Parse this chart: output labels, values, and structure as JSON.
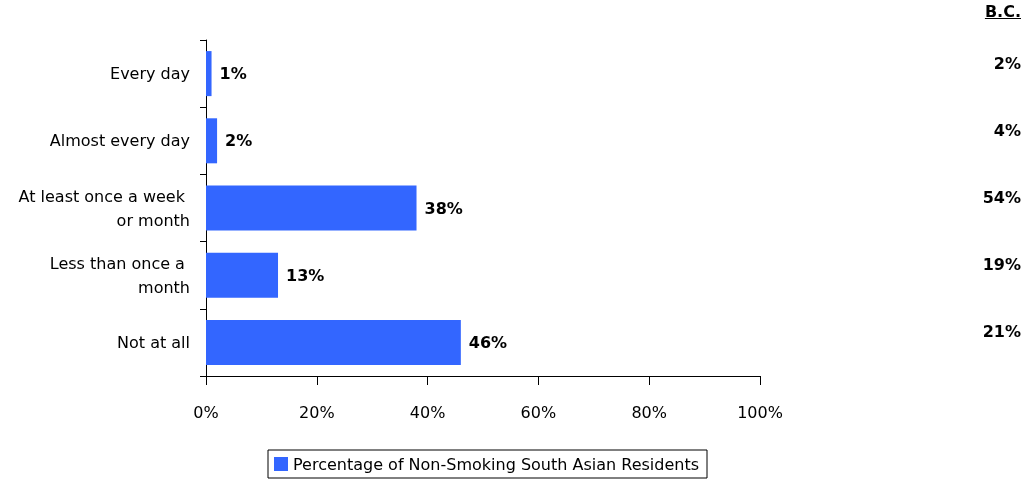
{
  "chart_data": {
    "type": "bar",
    "orientation": "horizontal",
    "categories": [
      "Every day",
      "Almost every day",
      "At least once a week or month",
      "Less than once a month",
      "Not at all"
    ],
    "series": [
      {
        "name": "Percentage of Non-Smoking South Asian Residents",
        "color": "#3366ff",
        "values": [
          1,
          2,
          38,
          13,
          46
        ],
        "value_labels": [
          "1%",
          "2%",
          "38%",
          "13%",
          "46%"
        ]
      }
    ],
    "xlim": [
      0,
      100
    ],
    "xticks": [
      {
        "value": 0,
        "label": "0%"
      },
      {
        "value": 20,
        "label": "20%"
      },
      {
        "value": 40,
        "label": "40%"
      },
      {
        "value": 60,
        "label": "60%"
      },
      {
        "value": 80,
        "label": "80%"
      },
      {
        "value": 100,
        "label": "100%"
      }
    ],
    "grid": false,
    "legend": "bottom",
    "annotations": [
      "B.C.",
      "2%",
      "4%",
      "54%",
      "19%",
      "21%"
    ]
  }
}
